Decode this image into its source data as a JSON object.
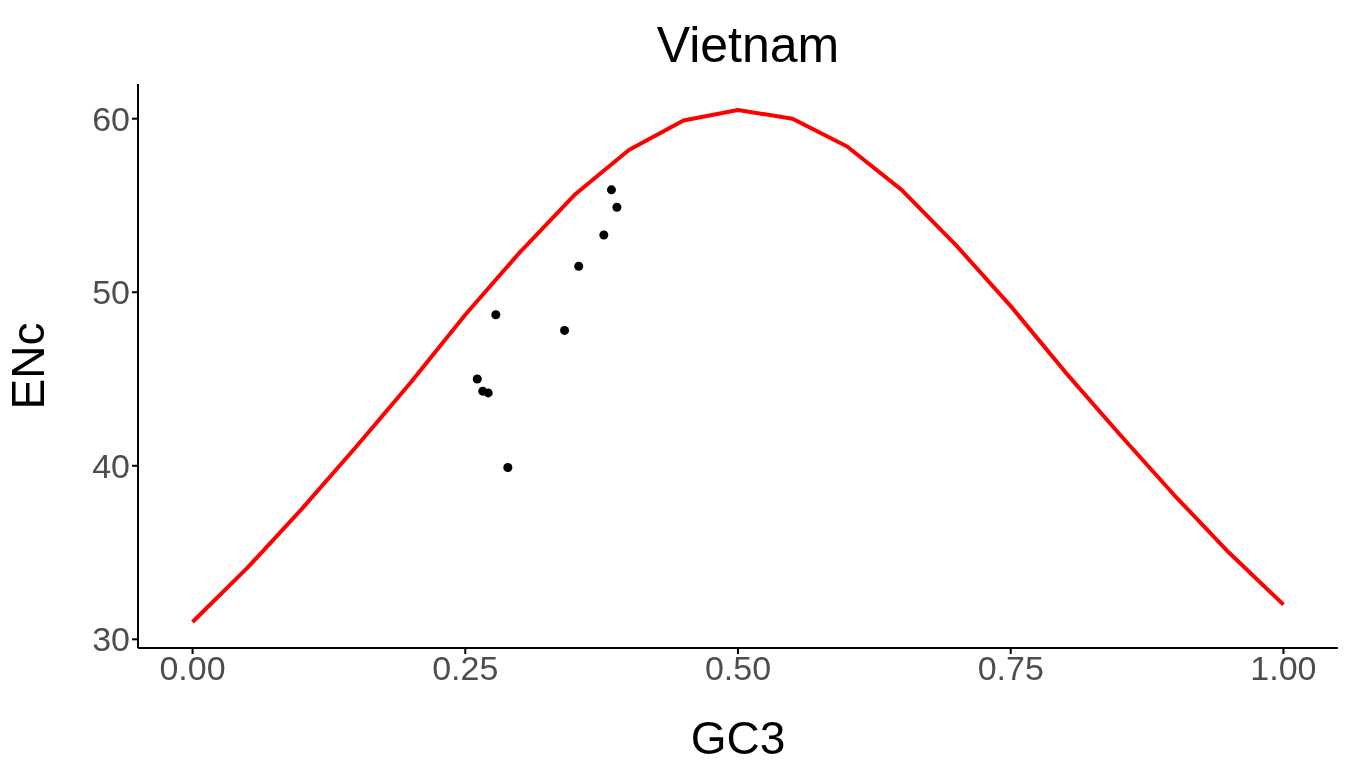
{
  "chart_data": {
    "type": "scatter",
    "title": "Vietnam",
    "xlabel": "GC3",
    "ylabel": "ENc",
    "xlim": [
      -0.05,
      1.05
    ],
    "xticks": [
      {
        "value": 0,
        "label": "0.00"
      },
      {
        "value": 0.25,
        "label": "0.25"
      },
      {
        "value": 0.5,
        "label": "0.50"
      },
      {
        "value": 0.75,
        "label": "0.75"
      },
      {
        "value": 1,
        "label": "1.00"
      }
    ],
    "ylim": [
      29.5,
      62
    ],
    "yticks": [
      30,
      40,
      50,
      60
    ],
    "grid": false,
    "series": [
      {
        "type": "line",
        "color": "#ff0000",
        "line_style": "solid",
        "marker": "none",
        "x": [
          0,
          0.05,
          0.1,
          0.15,
          0.2,
          0.25,
          0.3,
          0.35,
          0.4,
          0.45,
          0.5,
          0.55,
          0.6,
          0.65,
          0.7,
          0.75,
          0.8,
          0.85,
          0.9,
          0.95,
          1
        ],
        "values": [
          31,
          34.1,
          37.5,
          41.1,
          44.8,
          48.7,
          52.3,
          55.6,
          58.2,
          59.9,
          60.5,
          60,
          58.4,
          55.9,
          52.7,
          49.2,
          45.4,
          41.8,
          38.3,
          35,
          32
        ]
      },
      {
        "color": "#000000",
        "marker": "circle",
        "x": [
          0.384,
          0.389,
          0.377,
          0.354,
          0.278,
          0.341,
          0.261,
          0.266,
          0.271,
          0.289
        ],
        "values": [
          55.9,
          54.9,
          53.3,
          51.5,
          48.7,
          47.8,
          45,
          44.3,
          44.2,
          39.9
        ]
      }
    ]
  }
}
